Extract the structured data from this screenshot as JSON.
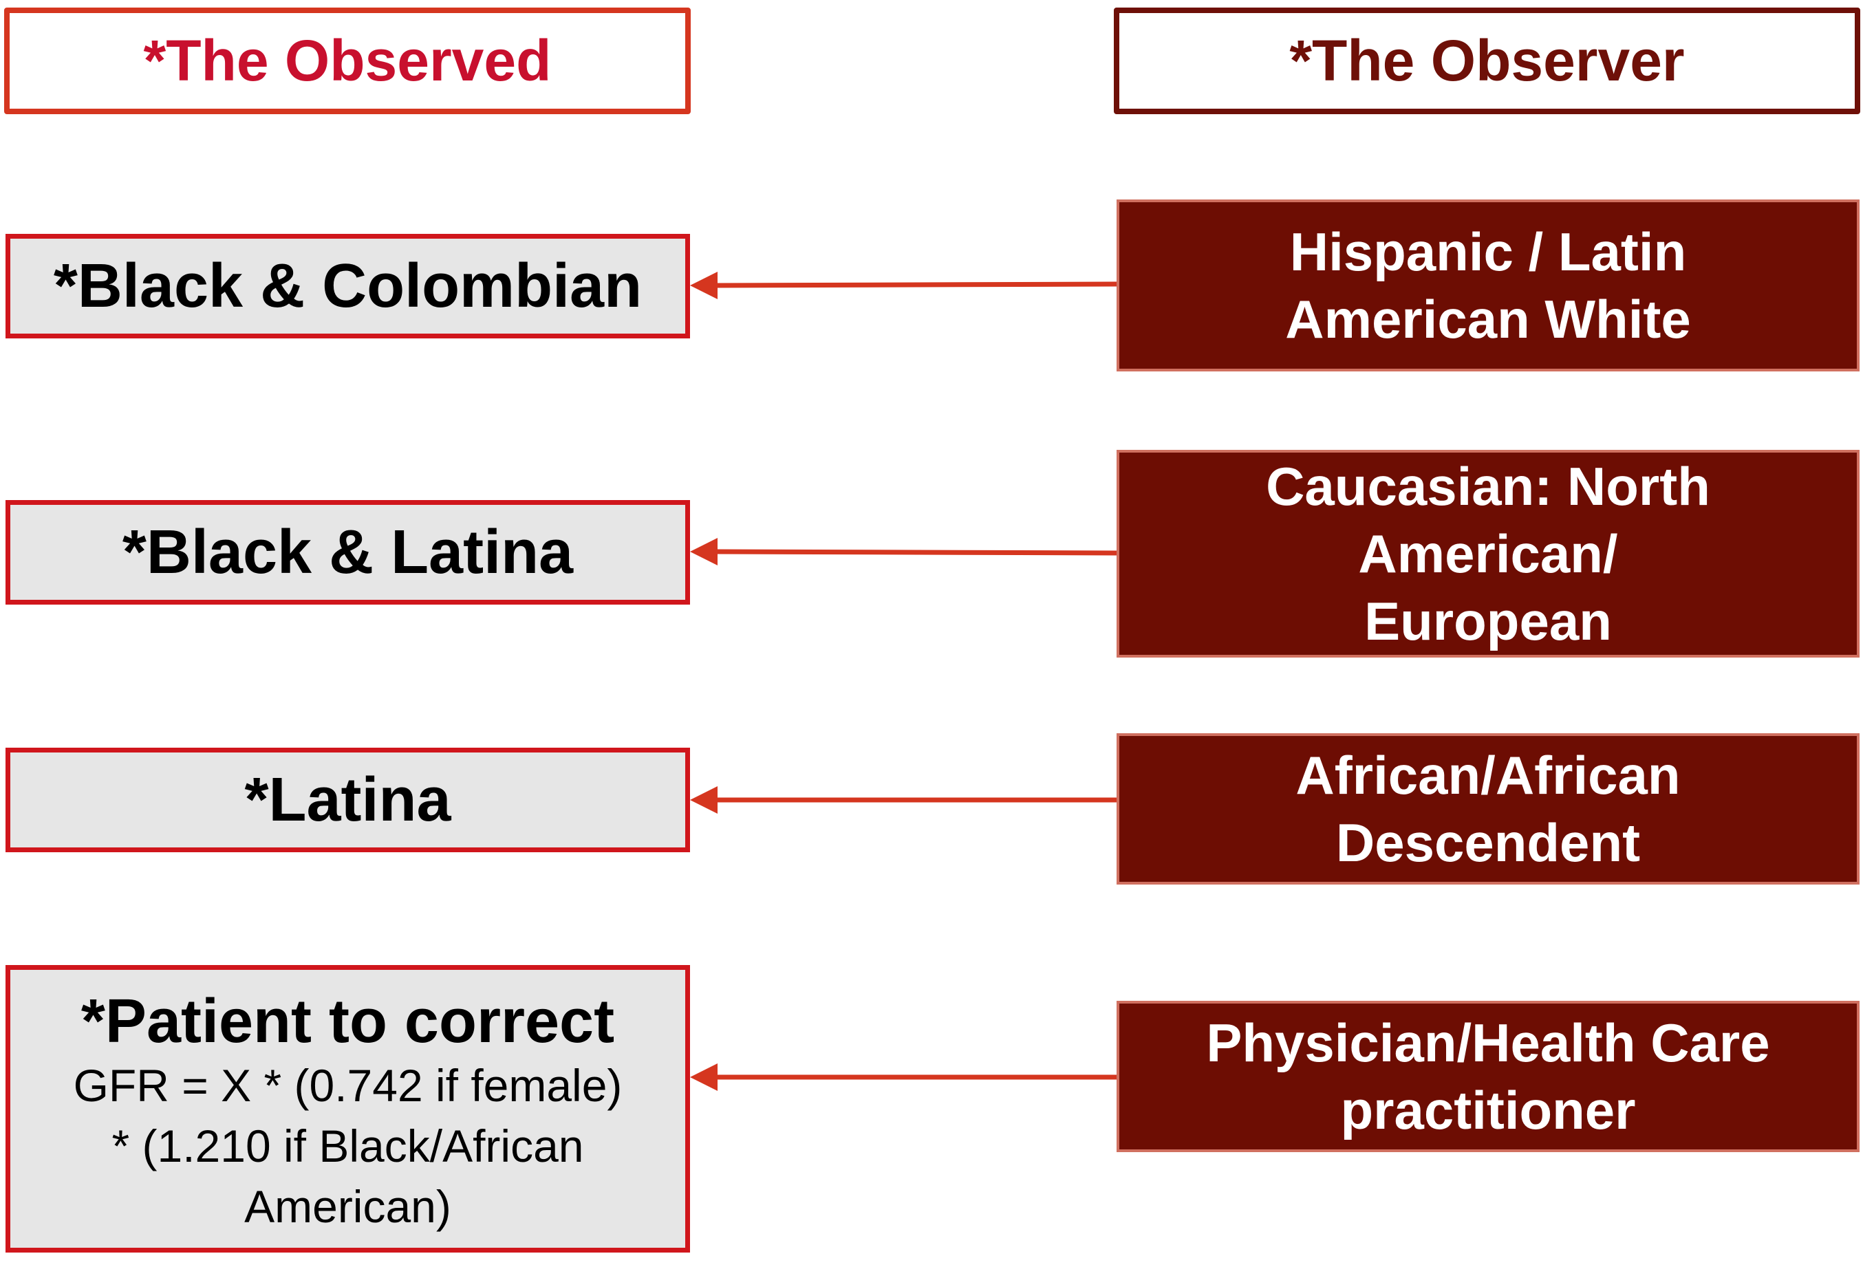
{
  "headers": {
    "observed": "*The Observed",
    "observer": "*The Observer"
  },
  "observed": [
    {
      "title": "*Black & Colombian"
    },
    {
      "title": "*Black & Latina"
    },
    {
      "title": "*Latina"
    },
    {
      "title": "*Patient to correct",
      "detail": [
        "GFR = X * (0.742 if female)",
        "* (1.210 if Black/African",
        "American)"
      ]
    }
  ],
  "observers": [
    {
      "lines": [
        "Hispanic / Latin",
        "American White"
      ]
    },
    {
      "lines": [
        "Caucasian: North",
        "American/",
        "European"
      ]
    },
    {
      "lines": [
        "African/African",
        "Descendent"
      ]
    },
    {
      "lines": [
        "Physician/Health Care",
        "practitioner"
      ]
    }
  ],
  "colors": {
    "header_observed_text": "#c8102e",
    "header_observer_text": "#6e1008",
    "observed_border": "#d0161c",
    "observed_fill": "#e6e6e6",
    "observer_fill": "#6d0d03",
    "arrow": "#d5361f"
  }
}
